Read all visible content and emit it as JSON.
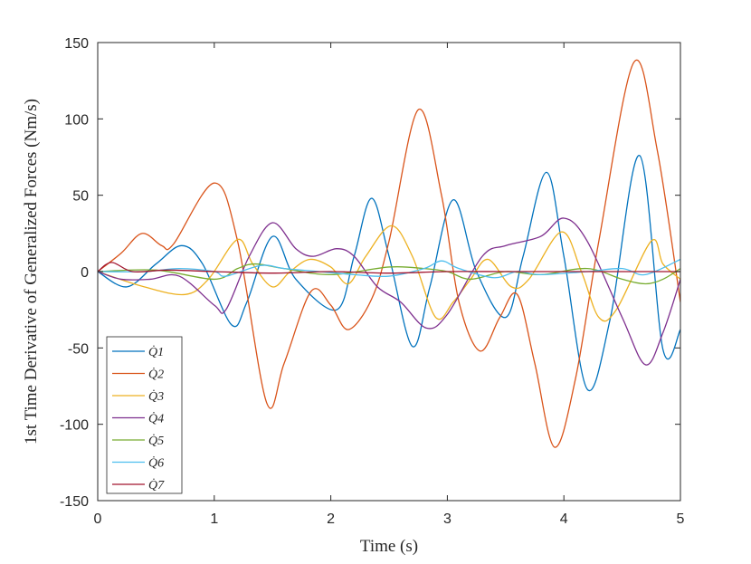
{
  "chart_data": {
    "type": "line",
    "xlabel": "Time (s)",
    "ylabel": "1st Time Derivative of Generalized Forces (Nm/s)",
    "xlim": [
      0,
      5
    ],
    "ylim": [
      -150,
      150
    ],
    "xticks": [
      "0",
      "1",
      "2",
      "3",
      "4",
      "5"
    ],
    "yticks": [
      "150",
      "100",
      "50",
      "0",
      "-50",
      "-100",
      "-150"
    ],
    "grid": false,
    "legend_position": "bottom-left",
    "series": [
      {
        "name": "Q̇1",
        "color": "#0072BD",
        "points": [
          [
            0,
            0
          ],
          [
            0.25,
            -10
          ],
          [
            0.5,
            5
          ],
          [
            0.72,
            17
          ],
          [
            0.9,
            5
          ],
          [
            1.15,
            -35
          ],
          [
            1.28,
            -20
          ],
          [
            1.5,
            23
          ],
          [
            1.7,
            -5
          ],
          [
            2.05,
            -25
          ],
          [
            2.2,
            10
          ],
          [
            2.35,
            48
          ],
          [
            2.5,
            10
          ],
          [
            2.7,
            -49
          ],
          [
            2.85,
            -10
          ],
          [
            3.05,
            47
          ],
          [
            3.25,
            0
          ],
          [
            3.5,
            -30
          ],
          [
            3.65,
            10
          ],
          [
            3.85,
            65
          ],
          [
            4.0,
            10
          ],
          [
            4.2,
            -77
          ],
          [
            4.4,
            -30
          ],
          [
            4.65,
            76
          ],
          [
            4.85,
            -51
          ],
          [
            5.0,
            -38
          ]
        ]
      },
      {
        "name": "Q̇2",
        "color": "#D95319",
        "points": [
          [
            0,
            0
          ],
          [
            0.2,
            12
          ],
          [
            0.38,
            25
          ],
          [
            0.55,
            17
          ],
          [
            0.65,
            18
          ],
          [
            1.0,
            58
          ],
          [
            1.2,
            20
          ],
          [
            1.45,
            -86
          ],
          [
            1.6,
            -60
          ],
          [
            1.83,
            -13
          ],
          [
            2.0,
            -22
          ],
          [
            2.15,
            -38
          ],
          [
            2.35,
            -18
          ],
          [
            2.5,
            20
          ],
          [
            2.75,
            106
          ],
          [
            2.95,
            50
          ],
          [
            3.1,
            -20
          ],
          [
            3.28,
            -52
          ],
          [
            3.45,
            -30
          ],
          [
            3.6,
            -15
          ],
          [
            3.75,
            -60
          ],
          [
            3.92,
            -115
          ],
          [
            4.1,
            -70
          ],
          [
            4.3,
            20
          ],
          [
            4.6,
            137
          ],
          [
            4.8,
            80
          ],
          [
            5.0,
            -20
          ]
        ]
      },
      {
        "name": "Q̇3",
        "color": "#EDB120",
        "points": [
          [
            0,
            0
          ],
          [
            0.4,
            -10
          ],
          [
            0.75,
            -15
          ],
          [
            0.95,
            -5
          ],
          [
            1.2,
            21
          ],
          [
            1.33,
            5
          ],
          [
            1.5,
            -10
          ],
          [
            1.65,
            0
          ],
          [
            1.82,
            8
          ],
          [
            2.0,
            3
          ],
          [
            2.15,
            -8
          ],
          [
            2.3,
            10
          ],
          [
            2.52,
            30
          ],
          [
            2.7,
            10
          ],
          [
            2.9,
            -30
          ],
          [
            3.05,
            -20
          ],
          [
            3.2,
            -5
          ],
          [
            3.35,
            8
          ],
          [
            3.55,
            -10
          ],
          [
            3.7,
            -5
          ],
          [
            3.98,
            26
          ],
          [
            4.15,
            0
          ],
          [
            4.3,
            -30
          ],
          [
            4.45,
            -25
          ],
          [
            4.75,
            20
          ],
          [
            4.85,
            5
          ],
          [
            5.0,
            -5
          ]
        ]
      },
      {
        "name": "Q̇4",
        "color": "#7E2F8E",
        "points": [
          [
            0,
            0
          ],
          [
            0.2,
            -5
          ],
          [
            0.45,
            -5
          ],
          [
            0.7,
            -3
          ],
          [
            1.0,
            -22
          ],
          [
            1.1,
            -25
          ],
          [
            1.3,
            10
          ],
          [
            1.5,
            32
          ],
          [
            1.7,
            15
          ],
          [
            1.85,
            10
          ],
          [
            2.05,
            15
          ],
          [
            2.2,
            10
          ],
          [
            2.4,
            -10
          ],
          [
            2.6,
            -20
          ],
          [
            2.82,
            -37
          ],
          [
            3.0,
            -28
          ],
          [
            3.3,
            10
          ],
          [
            3.5,
            17
          ],
          [
            3.8,
            23
          ],
          [
            4.0,
            35
          ],
          [
            4.2,
            20
          ],
          [
            4.5,
            -30
          ],
          [
            4.7,
            -61
          ],
          [
            4.85,
            -40
          ],
          [
            5.0,
            -5
          ]
        ]
      },
      {
        "name": "Q̇5",
        "color": "#77AC30",
        "points": [
          [
            0,
            0
          ],
          [
            0.5,
            1
          ],
          [
            1.0,
            -5
          ],
          [
            1.2,
            2
          ],
          [
            1.35,
            5
          ],
          [
            1.6,
            2
          ],
          [
            2.0,
            -2
          ],
          [
            2.5,
            3
          ],
          [
            2.8,
            2
          ],
          [
            3.0,
            0
          ],
          [
            3.2,
            -5
          ],
          [
            3.5,
            0
          ],
          [
            3.8,
            -2
          ],
          [
            4.2,
            2
          ],
          [
            4.5,
            -5
          ],
          [
            4.7,
            -8
          ],
          [
            4.85,
            -5
          ],
          [
            5.0,
            2
          ]
        ]
      },
      {
        "name": "Q̇6",
        "color": "#4DBEEE",
        "points": [
          [
            0,
            0
          ],
          [
            0.4,
            0
          ],
          [
            0.7,
            2
          ],
          [
            1.0,
            0
          ],
          [
            1.1,
            -3
          ],
          [
            1.4,
            4
          ],
          [
            1.6,
            2
          ],
          [
            1.9,
            0
          ],
          [
            2.2,
            -2
          ],
          [
            2.5,
            -3
          ],
          [
            2.8,
            2
          ],
          [
            2.95,
            7
          ],
          [
            3.1,
            2
          ],
          [
            3.4,
            -4
          ],
          [
            3.6,
            0
          ],
          [
            3.8,
            -2
          ],
          [
            4.2,
            0
          ],
          [
            4.5,
            2
          ],
          [
            4.7,
            -2
          ],
          [
            5.0,
            8
          ]
        ]
      },
      {
        "name": "Q̇7",
        "color": "#A2142F",
        "points": [
          [
            0,
            0
          ],
          [
            0.12,
            6
          ],
          [
            0.3,
            0
          ],
          [
            0.6,
            1
          ],
          [
            1.0,
            0
          ],
          [
            1.5,
            -1
          ],
          [
            2.0,
            0
          ],
          [
            2.5,
            -1
          ],
          [
            3.0,
            0
          ],
          [
            3.5,
            0
          ],
          [
            4.0,
            0
          ],
          [
            4.5,
            0
          ],
          [
            5.0,
            0
          ]
        ]
      }
    ]
  }
}
